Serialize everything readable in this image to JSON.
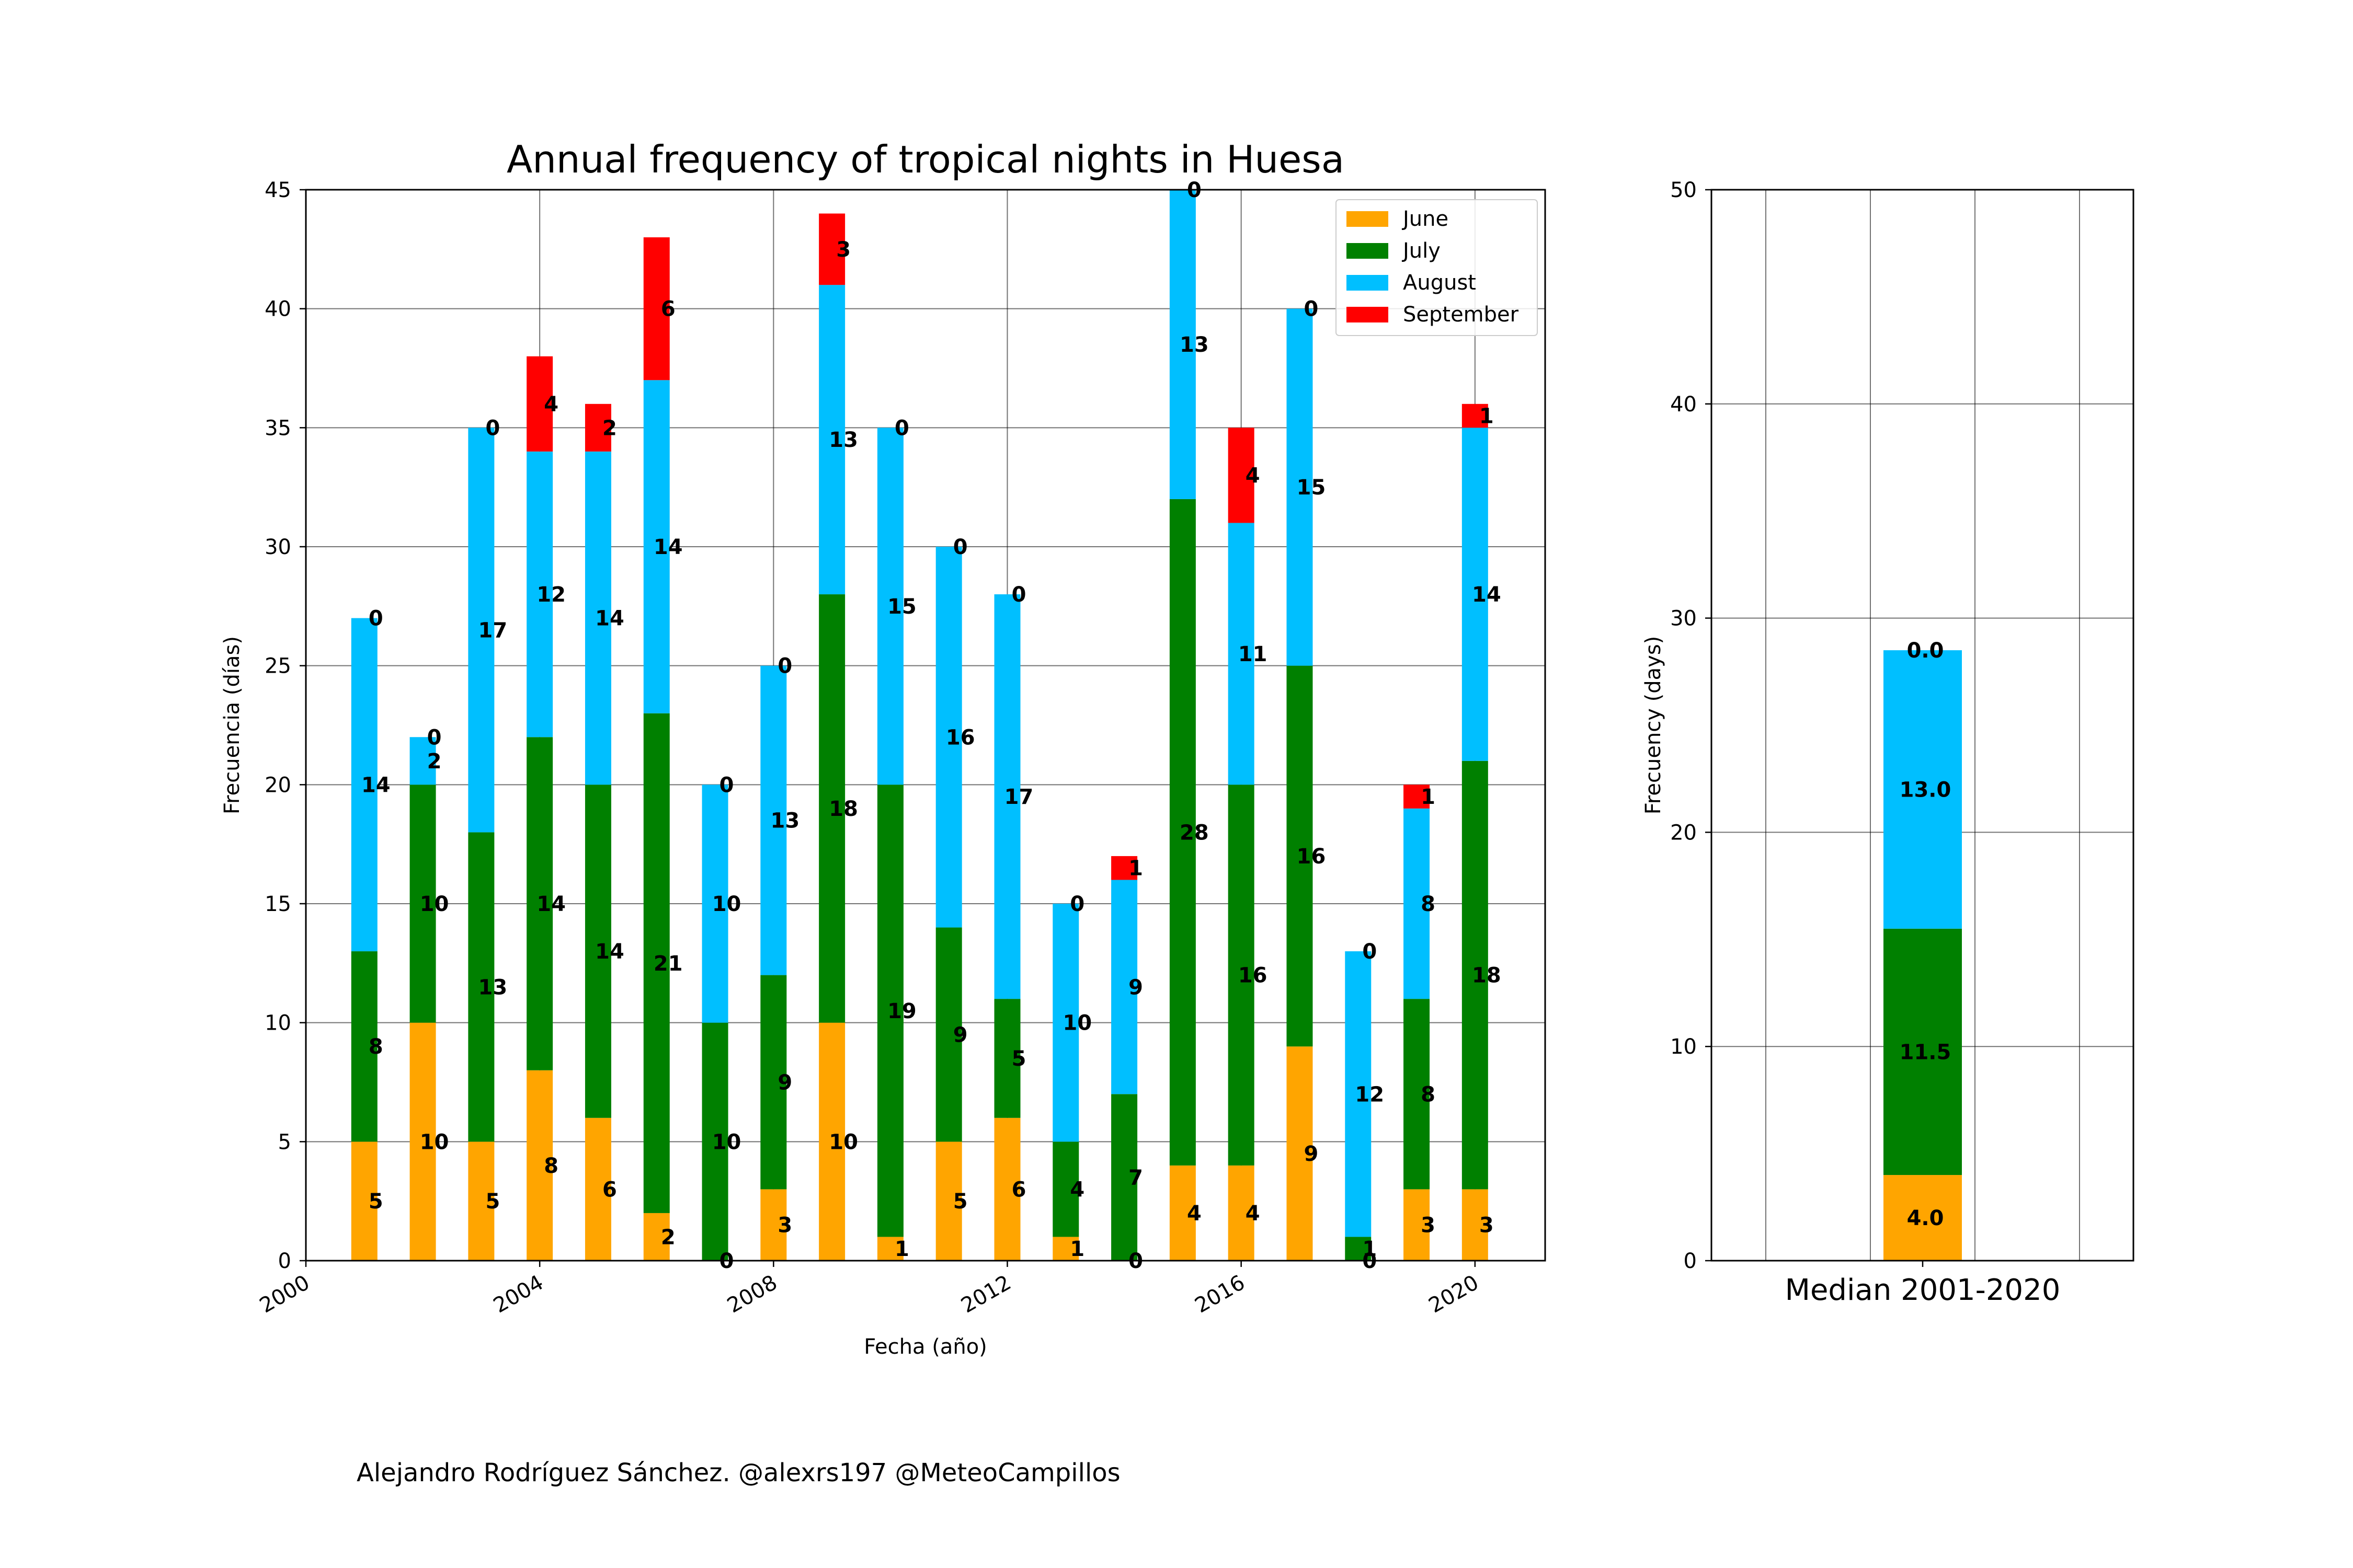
{
  "colors": {
    "June": "#ffa500",
    "July": "#008000",
    "August": "#00bfff",
    "September": "#ff0000"
  },
  "credit": "Alejandro Rodríguez Sánchez. @alexrs197 @MeteoCampillos",
  "chart_data": [
    {
      "type": "bar",
      "stacked": true,
      "title": "Annual frequency of tropical nights in Huesa",
      "xlabel": "Fecha (año)",
      "ylabel": "Frecuencia (días)",
      "xlim": [
        2000,
        2021.2
      ],
      "ylim": [
        0,
        45
      ],
      "x_ticks": [
        2000,
        2004,
        2008,
        2012,
        2016,
        2020
      ],
      "y_ticks": [
        0,
        5,
        10,
        15,
        20,
        25,
        30,
        35,
        40,
        45
      ],
      "grid": true,
      "legend_position": "top-right",
      "x": [
        2001,
        2002,
        2003,
        2004,
        2005,
        2006,
        2007,
        2008,
        2009,
        2010,
        2011,
        2012,
        2013,
        2014,
        2015,
        2016,
        2017,
        2018,
        2019,
        2020
      ],
      "series": [
        {
          "name": "June",
          "values": [
            5,
            10,
            5,
            8,
            6,
            2,
            0,
            3,
            10,
            1,
            5,
            6,
            1,
            0,
            4,
            4,
            9,
            0,
            3,
            3
          ]
        },
        {
          "name": "July",
          "values": [
            8,
            10,
            13,
            14,
            14,
            21,
            10,
            9,
            18,
            19,
            9,
            5,
            4,
            7,
            28,
            16,
            16,
            1,
            8,
            18
          ]
        },
        {
          "name": "August",
          "values": [
            14,
            2,
            17,
            12,
            14,
            14,
            10,
            13,
            13,
            15,
            16,
            17,
            10,
            9,
            13,
            11,
            15,
            12,
            8,
            14
          ]
        },
        {
          "name": "September",
          "values": [
            0,
            0,
            0,
            4,
            2,
            6,
            0,
            0,
            3,
            0,
            0,
            0,
            0,
            1,
            0,
            4,
            0,
            0,
            1,
            1
          ]
        }
      ]
    },
    {
      "type": "bar",
      "stacked": true,
      "categories": [
        "Median 2001-2020"
      ],
      "ylabel": "Frecuency (days)",
      "ylim": [
        0,
        50
      ],
      "y_ticks": [
        0,
        10,
        20,
        30,
        40,
        50
      ],
      "grid": true,
      "series": [
        {
          "name": "June",
          "values": [
            4.0
          ]
        },
        {
          "name": "July",
          "values": [
            11.5
          ]
        },
        {
          "name": "August",
          "values": [
            13.0
          ]
        },
        {
          "name": "September",
          "values": [
            0.0
          ]
        }
      ]
    }
  ]
}
